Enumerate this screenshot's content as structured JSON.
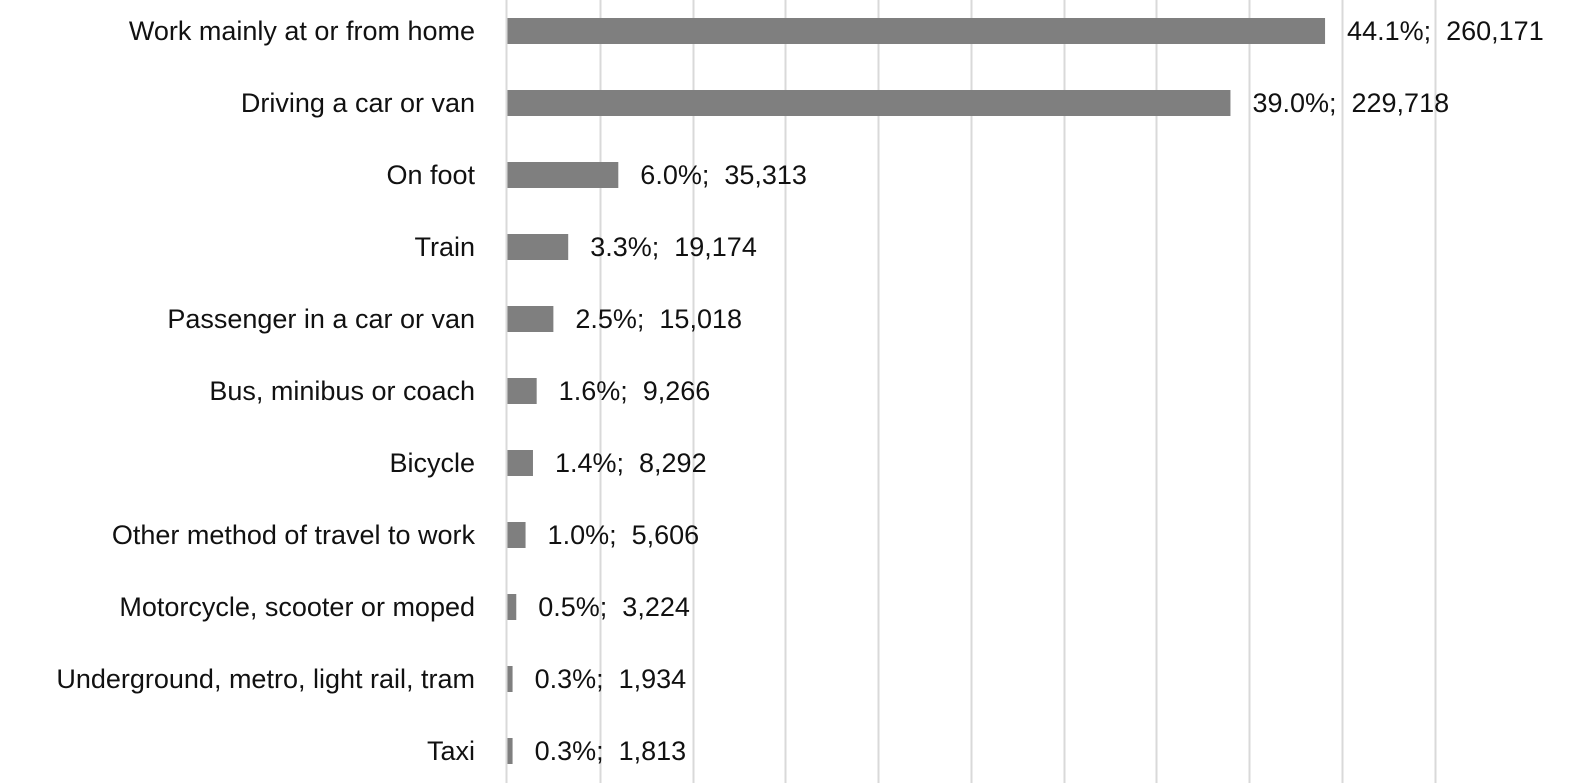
{
  "chart_data": {
    "type": "bar",
    "orientation": "horizontal",
    "title": "",
    "xlabel": "",
    "ylabel": "",
    "grid": "vertical-gridlines",
    "legend": "none",
    "xlim": [
      0,
      50
    ],
    "bar_color": "#7f7f7f",
    "grid_color": "#d9d9d9",
    "categories": [
      "Work mainly at or from home",
      "Driving a car or van",
      "On foot",
      "Train",
      "Passenger in a car or van",
      "Bus, minibus or coach",
      "Bicycle",
      "Other method of travel to work",
      "Motorcycle, scooter or moped",
      "Underground, metro, light rail, tram",
      "Taxi"
    ],
    "values": [
      44.1,
      39.0,
      6.0,
      3.3,
      2.5,
      1.6,
      1.4,
      1.0,
      0.5,
      0.3,
      0.3
    ],
    "counts": [
      260171,
      229718,
      35313,
      19174,
      15018,
      9266,
      8292,
      5606,
      3224,
      1934,
      1813
    ],
    "data_labels": [
      "44.1%;  260,171",
      "39.0%;  229,718",
      "6.0%;  35,313",
      "3.3%;  19,174",
      "2.5%;  15,018",
      "1.6%;  9,266",
      "1.4%;  8,292",
      "1.0%;  5,606",
      "0.5%;  3,224",
      "0.3%;  1,934",
      "0.3%;  1,813"
    ]
  }
}
